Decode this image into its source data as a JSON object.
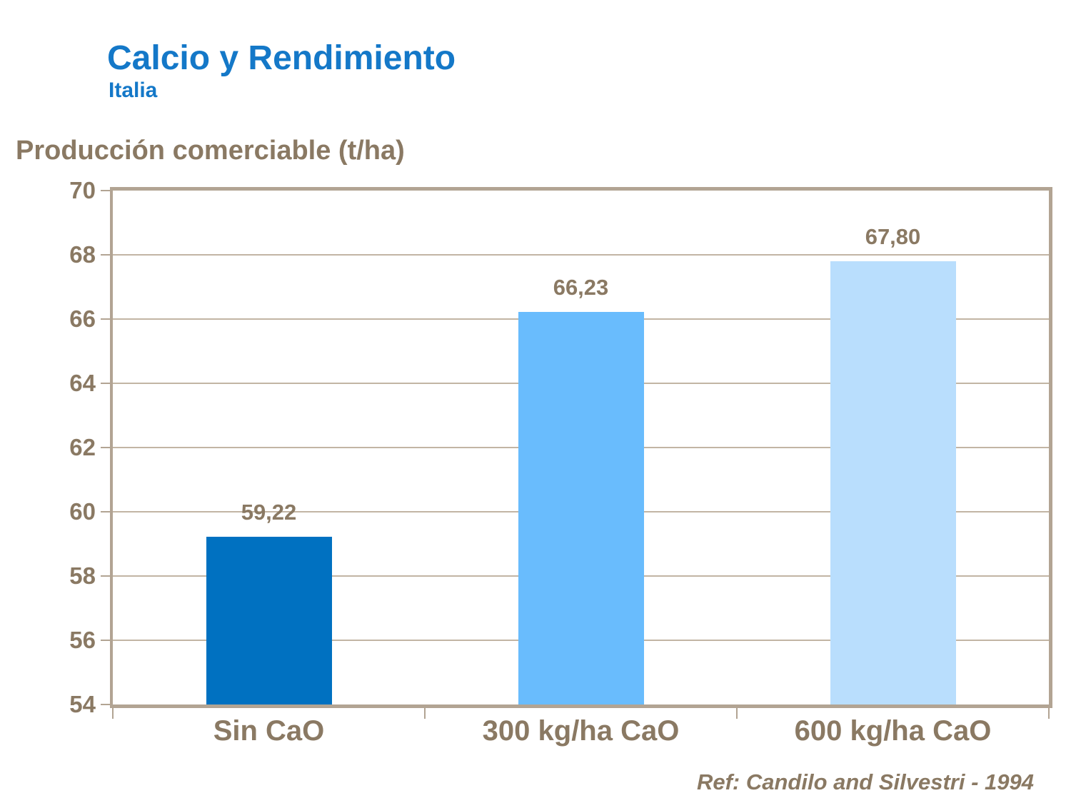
{
  "header": {
    "title": "Calcio y Rendimiento",
    "subtitle": "Italia"
  },
  "footer": {
    "reference": "Ref: Candilo and Silvestri - 1994"
  },
  "colors": {
    "title_blue": "#1478C8",
    "text_brown": "#8A7963",
    "frame": "#B2A493",
    "gridline": "#C2B5A4",
    "background": "#FFFFFF"
  },
  "chart_data": {
    "type": "bar",
    "title": "Calcio y Rendimiento - Italia",
    "ylabel": "Producción comerciable (t/ha)",
    "xlabel": "",
    "categories": [
      "Sin CaO",
      "300 kg/ha CaO",
      "600 kg/ha CaO"
    ],
    "values": [
      59.22,
      66.23,
      67.8
    ],
    "value_labels": [
      "59,22",
      "66,23",
      "67,80"
    ],
    "bar_colors": [
      "#0071C1",
      "#69BCFD",
      "#B9DEFD"
    ],
    "ylim": [
      54,
      70
    ],
    "yticks": [
      54,
      56,
      58,
      60,
      62,
      64,
      66,
      68,
      70
    ],
    "grid": true,
    "legend": false
  }
}
